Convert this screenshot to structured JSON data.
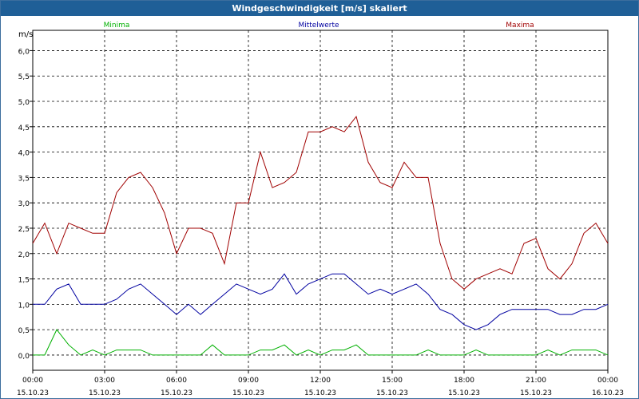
{
  "window": {
    "title": "Windgeschwindigkeit [m/s] skaliert"
  },
  "chart_data": {
    "type": "line",
    "title": "Windgeschwindigkeit [m/s] skaliert",
    "ylabel": "m/s",
    "xlabel": "",
    "ylim": [
      -0.3,
      6.4
    ],
    "yticks": [
      "0,0",
      "0,5",
      "1,0",
      "1,5",
      "2,0",
      "2,5",
      "3,0",
      "3,5",
      "4,0",
      "4,5",
      "5,0",
      "5,5",
      "6,0"
    ],
    "xticks": [
      {
        "time": "00:00",
        "date": "15.10.23"
      },
      {
        "time": "03:00",
        "date": "15.10.23"
      },
      {
        "time": "06:00",
        "date": "15.10.23"
      },
      {
        "time": "09:00",
        "date": "15.10.23"
      },
      {
        "time": "12:00",
        "date": "15.10.23"
      },
      {
        "time": "15:00",
        "date": "15.10.23"
      },
      {
        "time": "18:00",
        "date": "15.10.23"
      },
      {
        "time": "21:00",
        "date": "15.10.23"
      },
      {
        "time": "00:00",
        "date": "16.10.23"
      }
    ],
    "grid": true,
    "legend_position": "top",
    "colors": {
      "minima": "#00b000",
      "mittel": "#0000a0",
      "maxima": "#a00000"
    },
    "x_hours": [
      0,
      0.5,
      1,
      1.5,
      2,
      2.5,
      3,
      3.5,
      4,
      4.5,
      5,
      5.5,
      6,
      6.5,
      7,
      7.5,
      8,
      8.5,
      9,
      9.5,
      10,
      10.5,
      11,
      11.5,
      12,
      12.5,
      13,
      13.5,
      14,
      14.5,
      15,
      15.5,
      16,
      16.5,
      17,
      17.5,
      18,
      18.5,
      19,
      19.5,
      20,
      20.5,
      21,
      21.5,
      22,
      22.5,
      23,
      23.5,
      24
    ],
    "series": [
      {
        "name": "Minima",
        "values": [
          0.0,
          0.0,
          0.5,
          0.2,
          0.0,
          0.1,
          0.0,
          0.1,
          0.1,
          0.1,
          0.0,
          0.0,
          0.0,
          0.0,
          0.0,
          0.2,
          0.0,
          0.0,
          0.0,
          0.1,
          0.1,
          0.2,
          0.0,
          0.1,
          0.0,
          0.1,
          0.1,
          0.2,
          0.0,
          0.0,
          0.0,
          0.0,
          0.0,
          0.1,
          0.0,
          0.0,
          0.0,
          0.1,
          0.0,
          0.0,
          0.0,
          0.0,
          0.0,
          0.1,
          0.0,
          0.1,
          0.1,
          0.1,
          0.0
        ]
      },
      {
        "name": "Mittelwerte",
        "values": [
          1.0,
          1.0,
          1.3,
          1.4,
          1.0,
          1.0,
          1.0,
          1.1,
          1.3,
          1.4,
          1.2,
          1.0,
          0.8,
          1.0,
          0.8,
          1.0,
          1.2,
          1.4,
          1.3,
          1.2,
          1.3,
          1.6,
          1.2,
          1.4,
          1.5,
          1.6,
          1.6,
          1.4,
          1.2,
          1.3,
          1.2,
          1.3,
          1.4,
          1.2,
          0.9,
          0.8,
          0.6,
          0.5,
          0.6,
          0.8,
          0.9,
          0.9,
          0.9,
          0.9,
          0.8,
          0.8,
          0.9,
          0.9,
          1.0
        ]
      },
      {
        "name": "Maxima",
        "values": [
          2.2,
          2.6,
          2.0,
          2.6,
          2.5,
          2.4,
          2.4,
          3.2,
          3.5,
          3.6,
          3.3,
          2.8,
          2.0,
          2.5,
          2.5,
          2.4,
          1.8,
          3.0,
          3.0,
          4.0,
          3.3,
          3.4,
          3.6,
          4.4,
          4.4,
          4.5,
          4.4,
          4.7,
          3.8,
          3.4,
          3.3,
          3.8,
          3.5,
          3.5,
          2.2,
          1.5,
          1.3,
          1.5,
          1.6,
          1.7,
          1.6,
          2.2,
          2.3,
          1.7,
          1.5,
          1.8,
          2.4,
          2.6,
          2.2
        ]
      }
    ]
  }
}
